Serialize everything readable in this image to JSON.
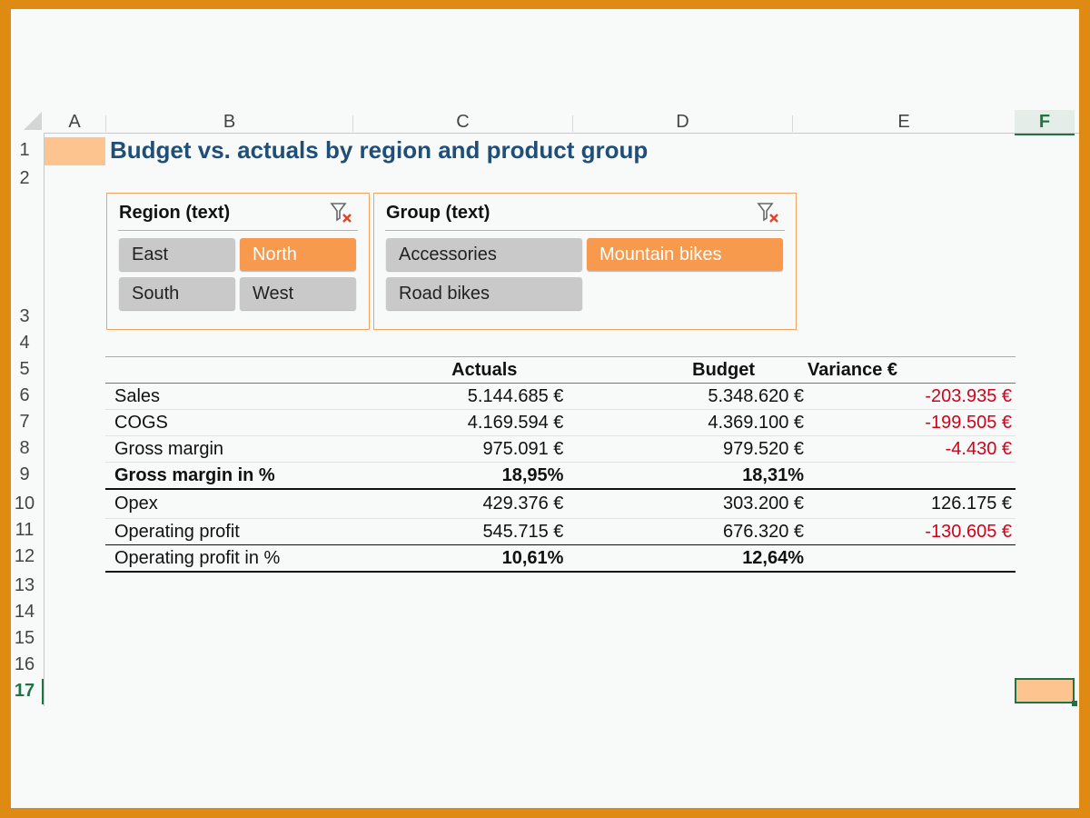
{
  "columns": [
    "A",
    "B",
    "C",
    "D",
    "E",
    "F"
  ],
  "selected_column": "F",
  "rows": [
    "1",
    "2",
    "3",
    "4",
    "5",
    "6",
    "7",
    "8",
    "9",
    "10",
    "11",
    "12",
    "13",
    "14",
    "15",
    "16",
    "17"
  ],
  "selected_row": "17",
  "title": "Budget vs. actuals by region and product group",
  "slicers": {
    "region": {
      "header": "Region (text)",
      "items": [
        {
          "label": "East",
          "selected": false
        },
        {
          "label": "North",
          "selected": true
        },
        {
          "label": "South",
          "selected": false
        },
        {
          "label": "West",
          "selected": false
        }
      ]
    },
    "group": {
      "header": "Group (text)",
      "items": [
        {
          "label": "Accessories",
          "selected": false
        },
        {
          "label": "Mountain bikes",
          "selected": true
        },
        {
          "label": "Road bikes",
          "selected": false
        }
      ]
    }
  },
  "table": {
    "headers": [
      "",
      "Actuals",
      "Budget",
      "Variance €"
    ],
    "rows": [
      {
        "label": "Sales",
        "actuals": "5.144.685 €",
        "budget": "5.348.620 €",
        "variance": "-203.935 €",
        "negative": true
      },
      {
        "label": "COGS",
        "actuals": "4.169.594 €",
        "budget": "4.369.100 €",
        "variance": "-199.505 €",
        "negative": true
      },
      {
        "label": "Gross margin",
        "actuals": "975.091 €",
        "budget": "979.520 €",
        "variance": "-4.430 €",
        "negative": true
      },
      {
        "label": "Gross margin in %",
        "actuals": "18,95%",
        "budget": "18,31%",
        "variance": "",
        "negative": false
      },
      {
        "label": "Opex",
        "actuals": "429.376 €",
        "budget": "303.200 €",
        "variance": "126.175 €",
        "negative": false
      },
      {
        "label": "Operating profit",
        "actuals": "545.715 €",
        "budget": "676.320 €",
        "variance": "-130.605 €",
        "negative": true
      },
      {
        "label": "Operating profit in %",
        "actuals": "10,61%",
        "budget": "12,64%",
        "variance": "",
        "negative": false
      }
    ]
  },
  "colors": {
    "accent": "#f79a4d",
    "title": "#1f4e79",
    "negative": "#d0021b",
    "excel_green": "#217346",
    "frame": "#df8a12"
  },
  "icons": {
    "clear_filter": "clear-filter-icon"
  }
}
